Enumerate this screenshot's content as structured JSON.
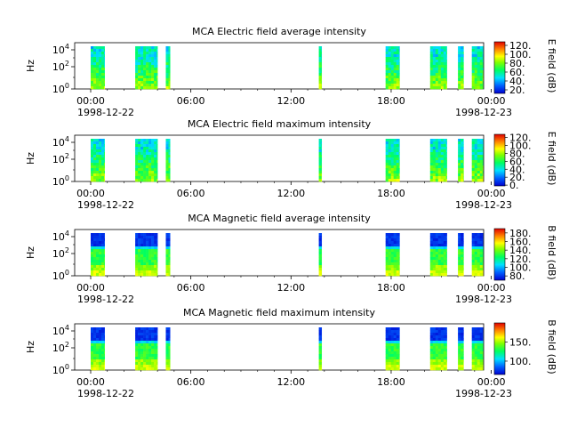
{
  "chart_data": [
    {
      "type": "heatmap",
      "title": "MCA  Electric field average intensity",
      "ylabel": "Hz",
      "y_scale": "log",
      "y_ticks": [
        {
          "exp": "0"
        },
        {
          "exp": "2"
        },
        {
          "exp": "4"
        }
      ],
      "x_tick_labels": [
        "00:00",
        "06:00",
        "12:00",
        "18:00",
        "00:00"
      ],
      "date_start": "1998-12-22",
      "date_end": "1998-12-23",
      "colorbar_label": "E field (dB)",
      "colorbar_range": [
        12,
        128
      ],
      "colorbar_ticks": [
        "120.",
        "100.",
        "80.",
        "60.",
        "40.",
        "20."
      ],
      "colorbar_tick_values": [
        120,
        100,
        80,
        60,
        40,
        20
      ],
      "colormap": "rainbow"
    },
    {
      "type": "heatmap",
      "title": "MCA  Electric field maximum intensity",
      "ylabel": "Hz",
      "y_scale": "log",
      "y_ticks": [
        {
          "exp": "0"
        },
        {
          "exp": "2"
        },
        {
          "exp": "4"
        }
      ],
      "x_tick_labels": [
        "00:00",
        "06:00",
        "12:00",
        "18:00",
        "00:00"
      ],
      "date_start": "1998-12-22",
      "date_end": "1998-12-23",
      "colorbar_label": "E field (dB)",
      "colorbar_range": [
        -2,
        128
      ],
      "colorbar_ticks": [
        "120.",
        "100.",
        "80.",
        "60.",
        "40.",
        "20.",
        "0."
      ],
      "colorbar_tick_values": [
        120,
        100,
        80,
        60,
        40,
        20,
        0
      ],
      "colormap": "rainbow"
    },
    {
      "type": "heatmap",
      "title": "MCA  Magnetic field average intensity",
      "ylabel": "Hz",
      "y_scale": "log",
      "y_ticks": [
        {
          "exp": "0"
        },
        {
          "exp": "2"
        },
        {
          "exp": "4"
        }
      ],
      "x_tick_labels": [
        "00:00",
        "06:00",
        "12:00",
        "18:00",
        "00:00"
      ],
      "date_start": "1998-12-22",
      "date_end": "1998-12-23",
      "colorbar_label": "B field (dB)",
      "colorbar_range": [
        70,
        190
      ],
      "colorbar_ticks": [
        "180.",
        "160.",
        "140.",
        "120.",
        "100.",
        "80."
      ],
      "colorbar_tick_values": [
        180,
        160,
        140,
        120,
        100,
        80
      ],
      "colormap": "rainbow"
    },
    {
      "type": "heatmap",
      "title": "MCA  Magnetic field maximum intensity",
      "ylabel": "Hz",
      "y_scale": "log",
      "y_ticks": [
        {
          "exp": "0"
        },
        {
          "exp": "2"
        },
        {
          "exp": "4"
        }
      ],
      "x_tick_labels": [
        "00:00",
        "06:00",
        "12:00",
        "18:00",
        "00:00"
      ],
      "date_start": "1998-12-22",
      "date_end": "1998-12-23",
      "colorbar_label": "B field (dB)",
      "colorbar_range": [
        65,
        200
      ],
      "colorbar_ticks": [
        "150.",
        "100."
      ],
      "colorbar_tick_values": [
        150,
        100
      ],
      "colormap": "rainbow"
    }
  ],
  "data_blocks_utc": [
    [
      "1998-12-22 00:00",
      "1998-12-22 00:50"
    ],
    [
      "1998-12-22 02:40",
      "1998-12-22 04:00"
    ],
    [
      "1998-12-22 04:30",
      "1998-12-22 04:45"
    ],
    [
      "1998-12-22 13:40",
      "1998-12-22 13:50"
    ],
    [
      "1998-12-22 17:40",
      "1998-12-22 18:30"
    ],
    [
      "1998-12-22 20:20",
      "1998-12-22 21:20"
    ],
    [
      "1998-12-22 22:00",
      "1998-12-22 22:20"
    ],
    [
      "1998-12-22 22:50",
      "1998-12-22 23:30"
    ]
  ]
}
